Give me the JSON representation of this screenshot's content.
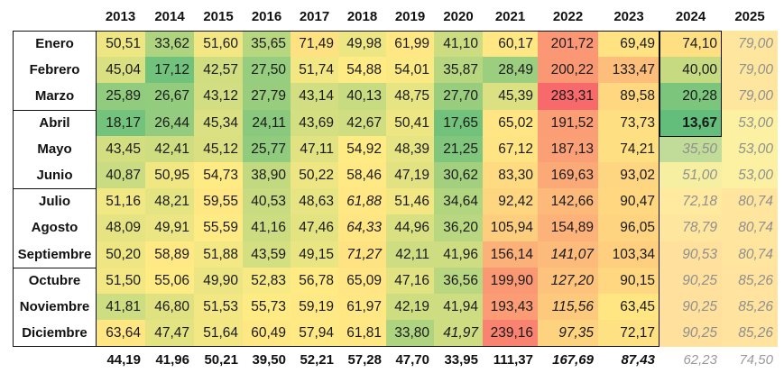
{
  "chart_data": {
    "type": "heatmap",
    "columns": [
      "2013",
      "2014",
      "2015",
      "2016",
      "2017",
      "2018",
      "2019",
      "2020",
      "2021",
      "2022",
      "2023",
      "2024",
      "2025"
    ],
    "rows": [
      {
        "label": "Enero",
        "values": [
          "50,51",
          "33,62",
          "51,60",
          "35,65",
          "71,49",
          "49,98",
          "61,99",
          "41,10",
          "60,17",
          "201,72",
          "69,49",
          "74,10",
          "79,00"
        ],
        "num": [
          50.51,
          33.62,
          51.6,
          35.65,
          71.49,
          49.98,
          61.99,
          41.1,
          60.17,
          201.72,
          69.49,
          74.1,
          79.0
        ]
      },
      {
        "label": "Febrero",
        "values": [
          "45,04",
          "17,12",
          "42,57",
          "27,50",
          "51,74",
          "54,88",
          "54,01",
          "35,87",
          "28,49",
          "200,22",
          "133,47",
          "40,00",
          "79,00"
        ],
        "num": [
          45.04,
          17.12,
          42.57,
          27.5,
          51.74,
          54.88,
          54.01,
          35.87,
          28.49,
          200.22,
          133.47,
          40.0,
          79.0
        ]
      },
      {
        "label": "Marzo",
        "values": [
          "25,89",
          "26,67",
          "43,12",
          "27,79",
          "43,14",
          "40,13",
          "48,75",
          "27,70",
          "45,39",
          "283,31",
          "89,58",
          "20,28",
          "79,00"
        ],
        "num": [
          25.89,
          26.67,
          43.12,
          27.79,
          43.14,
          40.13,
          48.75,
          27.7,
          45.39,
          283.31,
          89.58,
          20.28,
          79.0
        ]
      },
      {
        "label": "Abril",
        "values": [
          "18,17",
          "26,44",
          "45,34",
          "24,11",
          "43,69",
          "42,67",
          "50,41",
          "17,65",
          "65,02",
          "191,52",
          "73,73",
          "13,67",
          "53,00"
        ],
        "num": [
          18.17,
          26.44,
          45.34,
          24.11,
          43.69,
          42.67,
          50.41,
          17.65,
          65.02,
          191.52,
          73.73,
          13.67,
          53.0
        ]
      },
      {
        "label": "Mayo",
        "values": [
          "43,45",
          "42,41",
          "45,12",
          "25,77",
          "47,11",
          "54,92",
          "48,39",
          "21,25",
          "67,12",
          "187,13",
          "74,21",
          "35,50",
          "53,00"
        ],
        "num": [
          43.45,
          42.41,
          45.12,
          25.77,
          47.11,
          54.92,
          48.39,
          21.25,
          67.12,
          187.13,
          74.21,
          35.5,
          53.0
        ]
      },
      {
        "label": "Junio",
        "values": [
          "40,87",
          "50,95",
          "54,73",
          "38,90",
          "50,22",
          "58,46",
          "47,19",
          "30,62",
          "83,30",
          "169,63",
          "93,02",
          "51,00",
          "53,00"
        ],
        "num": [
          40.87,
          50.95,
          54.73,
          38.9,
          50.22,
          58.46,
          47.19,
          30.62,
          83.3,
          169.63,
          93.02,
          51.0,
          53.0
        ]
      },
      {
        "label": "Julio",
        "values": [
          "51,16",
          "48,21",
          "59,55",
          "40,53",
          "48,63",
          "61,88",
          "51,46",
          "34,64",
          "92,42",
          "142,66",
          "90,47",
          "72,18",
          "80,74"
        ],
        "num": [
          51.16,
          48.21,
          59.55,
          40.53,
          48.63,
          61.88,
          51.46,
          34.64,
          92.42,
          142.66,
          90.47,
          72.18,
          80.74
        ]
      },
      {
        "label": "Agosto",
        "values": [
          "48,09",
          "49,91",
          "55,59",
          "41,16",
          "47,46",
          "64,33",
          "44,96",
          "36,20",
          "105,94",
          "154,89",
          "96,05",
          "78,79",
          "80,74"
        ],
        "num": [
          48.09,
          49.91,
          55.59,
          41.16,
          47.46,
          64.33,
          44.96,
          36.2,
          105.94,
          154.89,
          96.05,
          78.79,
          80.74
        ]
      },
      {
        "label": "Septiembre",
        "values": [
          "50,20",
          "58,89",
          "51,88",
          "43,59",
          "49,15",
          "71,27",
          "42,11",
          "41,96",
          "156,14",
          "141,07",
          "103,34",
          "90,53",
          "80,74"
        ],
        "num": [
          50.2,
          58.89,
          51.88,
          43.59,
          49.15,
          71.27,
          42.11,
          41.96,
          156.14,
          141.07,
          103.34,
          90.53,
          80.74
        ]
      },
      {
        "label": "Octubre",
        "values": [
          "51,50",
          "55,06",
          "49,90",
          "52,83",
          "56,78",
          "65,09",
          "47,16",
          "36,56",
          "199,90",
          "127,20",
          "90,15",
          "90,25",
          "85,26"
        ],
        "num": [
          51.5,
          55.06,
          49.9,
          52.83,
          56.78,
          65.09,
          47.16,
          36.56,
          199.9,
          127.2,
          90.15,
          90.25,
          85.26
        ]
      },
      {
        "label": "Noviembre",
        "values": [
          "41,81",
          "46,80",
          "51,53",
          "55,73",
          "59,19",
          "61,97",
          "42,19",
          "41,94",
          "193,43",
          "115,56",
          "63,45",
          "90,25",
          "85,26"
        ],
        "num": [
          41.81,
          46.8,
          51.53,
          55.73,
          59.19,
          61.97,
          42.19,
          41.94,
          193.43,
          115.56,
          63.45,
          90.25,
          85.26
        ]
      },
      {
        "label": "Diciembre",
        "values": [
          "63,64",
          "47,47",
          "51,64",
          "60,49",
          "57,94",
          "61,81",
          "33,80",
          "41,97",
          "239,16",
          "97,35",
          "72,17",
          "90,25",
          "85,26"
        ],
        "num": [
          63.64,
          47.47,
          51.64,
          60.49,
          57.94,
          61.81,
          33.8,
          41.97,
          239.16,
          97.35,
          72.17,
          90.25,
          85.26
        ]
      }
    ],
    "italic_cells": [
      [
        6,
        5
      ],
      [
        7,
        5
      ],
      [
        8,
        5
      ],
      [
        8,
        9
      ],
      [
        9,
        9
      ],
      [
        10,
        9
      ],
      [
        11,
        9
      ],
      [
        11,
        7
      ]
    ],
    "projected_cells": [
      [
        0,
        12
      ],
      [
        1,
        12
      ],
      [
        2,
        12
      ],
      [
        3,
        12
      ],
      [
        4,
        11
      ],
      [
        4,
        12
      ],
      [
        5,
        11
      ],
      [
        5,
        12
      ],
      [
        6,
        11
      ],
      [
        6,
        12
      ],
      [
        7,
        11
      ],
      [
        7,
        12
      ],
      [
        8,
        11
      ],
      [
        8,
        12
      ],
      [
        9,
        11
      ],
      [
        9,
        12
      ],
      [
        10,
        11
      ],
      [
        10,
        12
      ],
      [
        11,
        11
      ],
      [
        11,
        12
      ]
    ],
    "bold_cells": [
      [
        3,
        11
      ]
    ],
    "totals": [
      "44,19",
      "41,96",
      "50,21",
      "39,50",
      "52,21",
      "57,28",
      "47,70",
      "33,95",
      "111,37",
      "167,69",
      "87,43",
      "62,23",
      "74,50"
    ],
    "totals_italic": [
      9,
      10
    ],
    "totals_projected": [
      11,
      12
    ],
    "color_scale": {
      "min_color": "#63be7b",
      "mid_color": "#ffeb84",
      "max_color": "#f8696b",
      "min": 13.67,
      "mid": 55,
      "max": 283.31
    },
    "projected_tint": 0.45,
    "quarter_groups": [
      [
        0,
        2
      ],
      [
        3,
        5
      ],
      [
        6,
        8
      ],
      [
        9,
        11
      ]
    ]
  }
}
